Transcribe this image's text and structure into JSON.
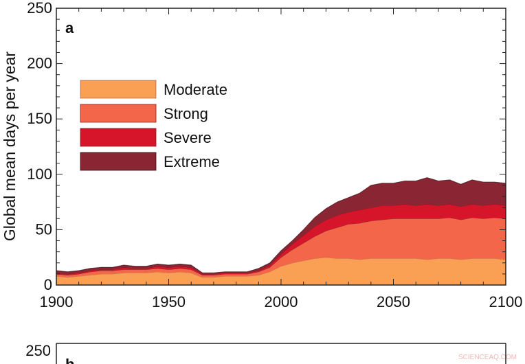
{
  "panel_a": {
    "letter": "a",
    "ylabel": "Global mean days per year",
    "watermark": "SCIENCEAQ.COM"
  },
  "panel_b": {
    "letter": "b",
    "top_tick": "250"
  },
  "chart_data": {
    "type": "area",
    "stacked": true,
    "title": "",
    "xlabel": "",
    "ylabel": "Global mean days per year",
    "xlim": [
      1900,
      2100
    ],
    "ylim": [
      0,
      250
    ],
    "x_ticks": [
      1900,
      1950,
      2000,
      2050,
      2100
    ],
    "y_ticks": [
      0,
      50,
      100,
      150,
      200,
      250
    ],
    "legend_position": "upper-left",
    "x": [
      1900,
      1905,
      1910,
      1915,
      1920,
      1925,
      1930,
      1935,
      1940,
      1945,
      1950,
      1955,
      1960,
      1965,
      1970,
      1975,
      1980,
      1985,
      1990,
      1995,
      2000,
      2005,
      2010,
      2015,
      2020,
      2025,
      2030,
      2035,
      2040,
      2045,
      2050,
      2055,
      2060,
      2065,
      2070,
      2075,
      2080,
      2085,
      2090,
      2095,
      2100
    ],
    "series": [
      {
        "name": "Moderate",
        "color": "#f9a054",
        "values": [
          8,
          7,
          8,
          9,
          10,
          10,
          11,
          11,
          11,
          12,
          11,
          12,
          11,
          7,
          7,
          8,
          8,
          8,
          9,
          12,
          17,
          20,
          22,
          24,
          25,
          24,
          24,
          23,
          24,
          24,
          24,
          24,
          24,
          23,
          24,
          24,
          23,
          24,
          24,
          24,
          23
        ]
      },
      {
        "name": "Strong",
        "color": "#f4664a",
        "values": [
          2,
          2,
          2,
          3,
          3,
          3,
          3,
          3,
          3,
          3,
          3,
          3,
          3,
          2,
          2,
          2,
          2,
          2,
          3,
          4,
          8,
          12,
          16,
          20,
          24,
          28,
          31,
          33,
          34,
          35,
          36,
          36,
          36,
          37,
          36,
          37,
          36,
          37,
          36,
          37,
          37
        ]
      },
      {
        "name": "Severe",
        "color": "#d6142a",
        "values": [
          1,
          1,
          1,
          1,
          1,
          1,
          2,
          1,
          1,
          2,
          2,
          2,
          2,
          1,
          1,
          1,
          1,
          1,
          1,
          2,
          3,
          5,
          7,
          9,
          10,
          11,
          11,
          12,
          12,
          13,
          12,
          13,
          12,
          13,
          12,
          12,
          12,
          12,
          12,
          12,
          12
        ]
      },
      {
        "name": "Extreme",
        "color": "#8a2634",
        "values": [
          2,
          2,
          2,
          2,
          2,
          2,
          2,
          2,
          2,
          2,
          2,
          2,
          2,
          1,
          1,
          1,
          1,
          1,
          2,
          2,
          3,
          3,
          5,
          8,
          10,
          12,
          13,
          15,
          20,
          20,
          20,
          21,
          22,
          24,
          22,
          22,
          20,
          22,
          21,
          20,
          20
        ]
      }
    ]
  }
}
